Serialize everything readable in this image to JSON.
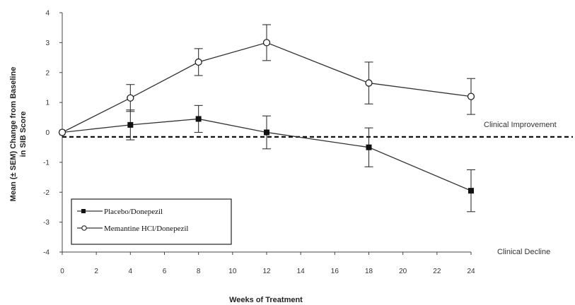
{
  "chart_data": {
    "type": "line",
    "title": "",
    "xlabel": "Weeks of Treatment",
    "ylabel": [
      "Mean (± SEM) Change from Baseline",
      "in SIB Score"
    ],
    "xlim": [
      0,
      24
    ],
    "ylim": [
      -4,
      4
    ],
    "x_ticks": [
      0,
      2,
      4,
      6,
      8,
      10,
      12,
      14,
      16,
      18,
      20,
      22,
      24
    ],
    "y_ticks": [
      -4,
      -3,
      -2,
      -1,
      0,
      1,
      2,
      3,
      4
    ],
    "grid": false,
    "legend_position": "bottom-left",
    "series": [
      {
        "name": "Placebo/Donepezil",
        "marker": "square-filled",
        "x": [
          0,
          4,
          8,
          12,
          18,
          24
        ],
        "y": [
          0.0,
          0.25,
          0.45,
          0.0,
          -0.5,
          -1.95
        ],
        "error": [
          0.0,
          0.5,
          0.45,
          0.55,
          0.65,
          0.7
        ]
      },
      {
        "name": "Memantine HCl/Donepezil",
        "marker": "circle-open",
        "x": [
          0,
          4,
          8,
          12,
          18,
          24
        ],
        "y": [
          0.0,
          1.15,
          2.35,
          3.0,
          1.65,
          1.2
        ],
        "error": [
          0.0,
          0.45,
          0.45,
          0.6,
          0.7,
          0.6
        ]
      }
    ],
    "reference_line": {
      "y": -0.15,
      "style": "dashed"
    },
    "annotations": {
      "improvement": "Clinical Improvement",
      "decline": "Clinical Decline"
    },
    "colors": {
      "line": "#333333",
      "axis": "#444444"
    }
  }
}
